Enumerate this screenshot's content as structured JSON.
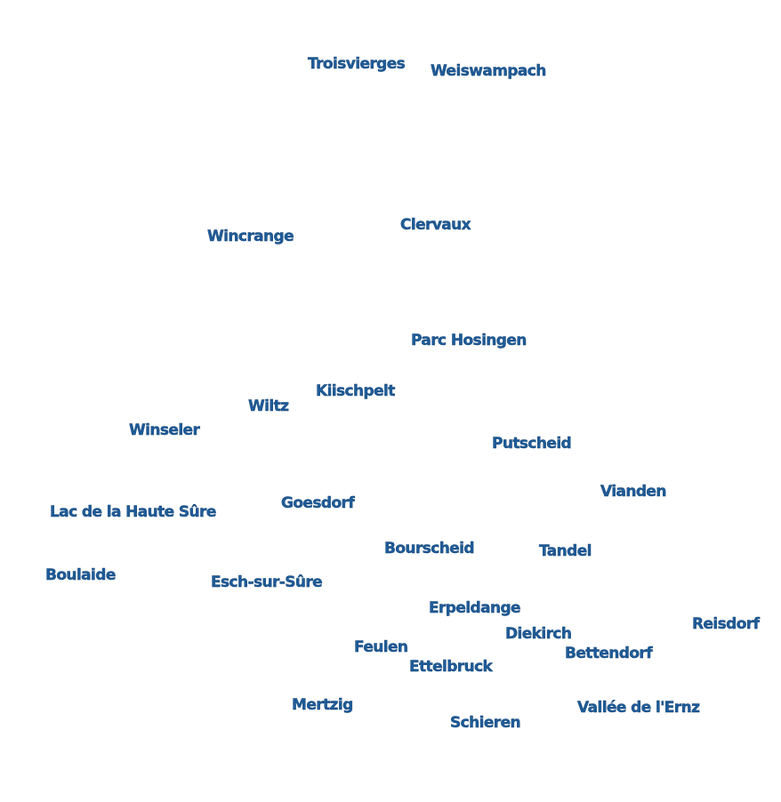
{
  "colors": {
    "label_fill": "#1f5c99",
    "label_halo": "#ffffff",
    "background": "#ffffff"
  },
  "places": [
    {
      "id": "troisvierges",
      "name": "Troisvierges"
    },
    {
      "id": "weiswampach",
      "name": "Weiswampach"
    },
    {
      "id": "clervaux",
      "name": "Clervaux"
    },
    {
      "id": "wincrange",
      "name": "Wincrange"
    },
    {
      "id": "parc-hosingen",
      "name": "Parc Hosingen"
    },
    {
      "id": "kiischpelt",
      "name": "Kiischpelt"
    },
    {
      "id": "wiltz",
      "name": "Wiltz"
    },
    {
      "id": "winseler",
      "name": "Winseler"
    },
    {
      "id": "putscheid",
      "name": "Putscheid"
    },
    {
      "id": "vianden",
      "name": "Vianden"
    },
    {
      "id": "goesdorf",
      "name": "Goesdorf"
    },
    {
      "id": "lac-de-la-haute-sure",
      "name": "Lac de la Haute Sûre"
    },
    {
      "id": "bourscheid",
      "name": "Bourscheid"
    },
    {
      "id": "tandel",
      "name": "Tandel"
    },
    {
      "id": "boulaide",
      "name": "Boulaide"
    },
    {
      "id": "esch-sur-sure",
      "name": "Esch-sur-Sûre"
    },
    {
      "id": "erpeldange",
      "name": "Erpeldange"
    },
    {
      "id": "reisdorf",
      "name": "Reisdorf"
    },
    {
      "id": "diekirch",
      "name": "Diekirch"
    },
    {
      "id": "feulen",
      "name": "Feulen"
    },
    {
      "id": "bettendorf",
      "name": "Bettendorf"
    },
    {
      "id": "ettelbruck",
      "name": "Ettelbruck"
    },
    {
      "id": "mertzig",
      "name": "Mertzig"
    },
    {
      "id": "vallee-de-lernz",
      "name": "Vallée de l'Ernz"
    },
    {
      "id": "schieren",
      "name": "Schieren"
    }
  ]
}
